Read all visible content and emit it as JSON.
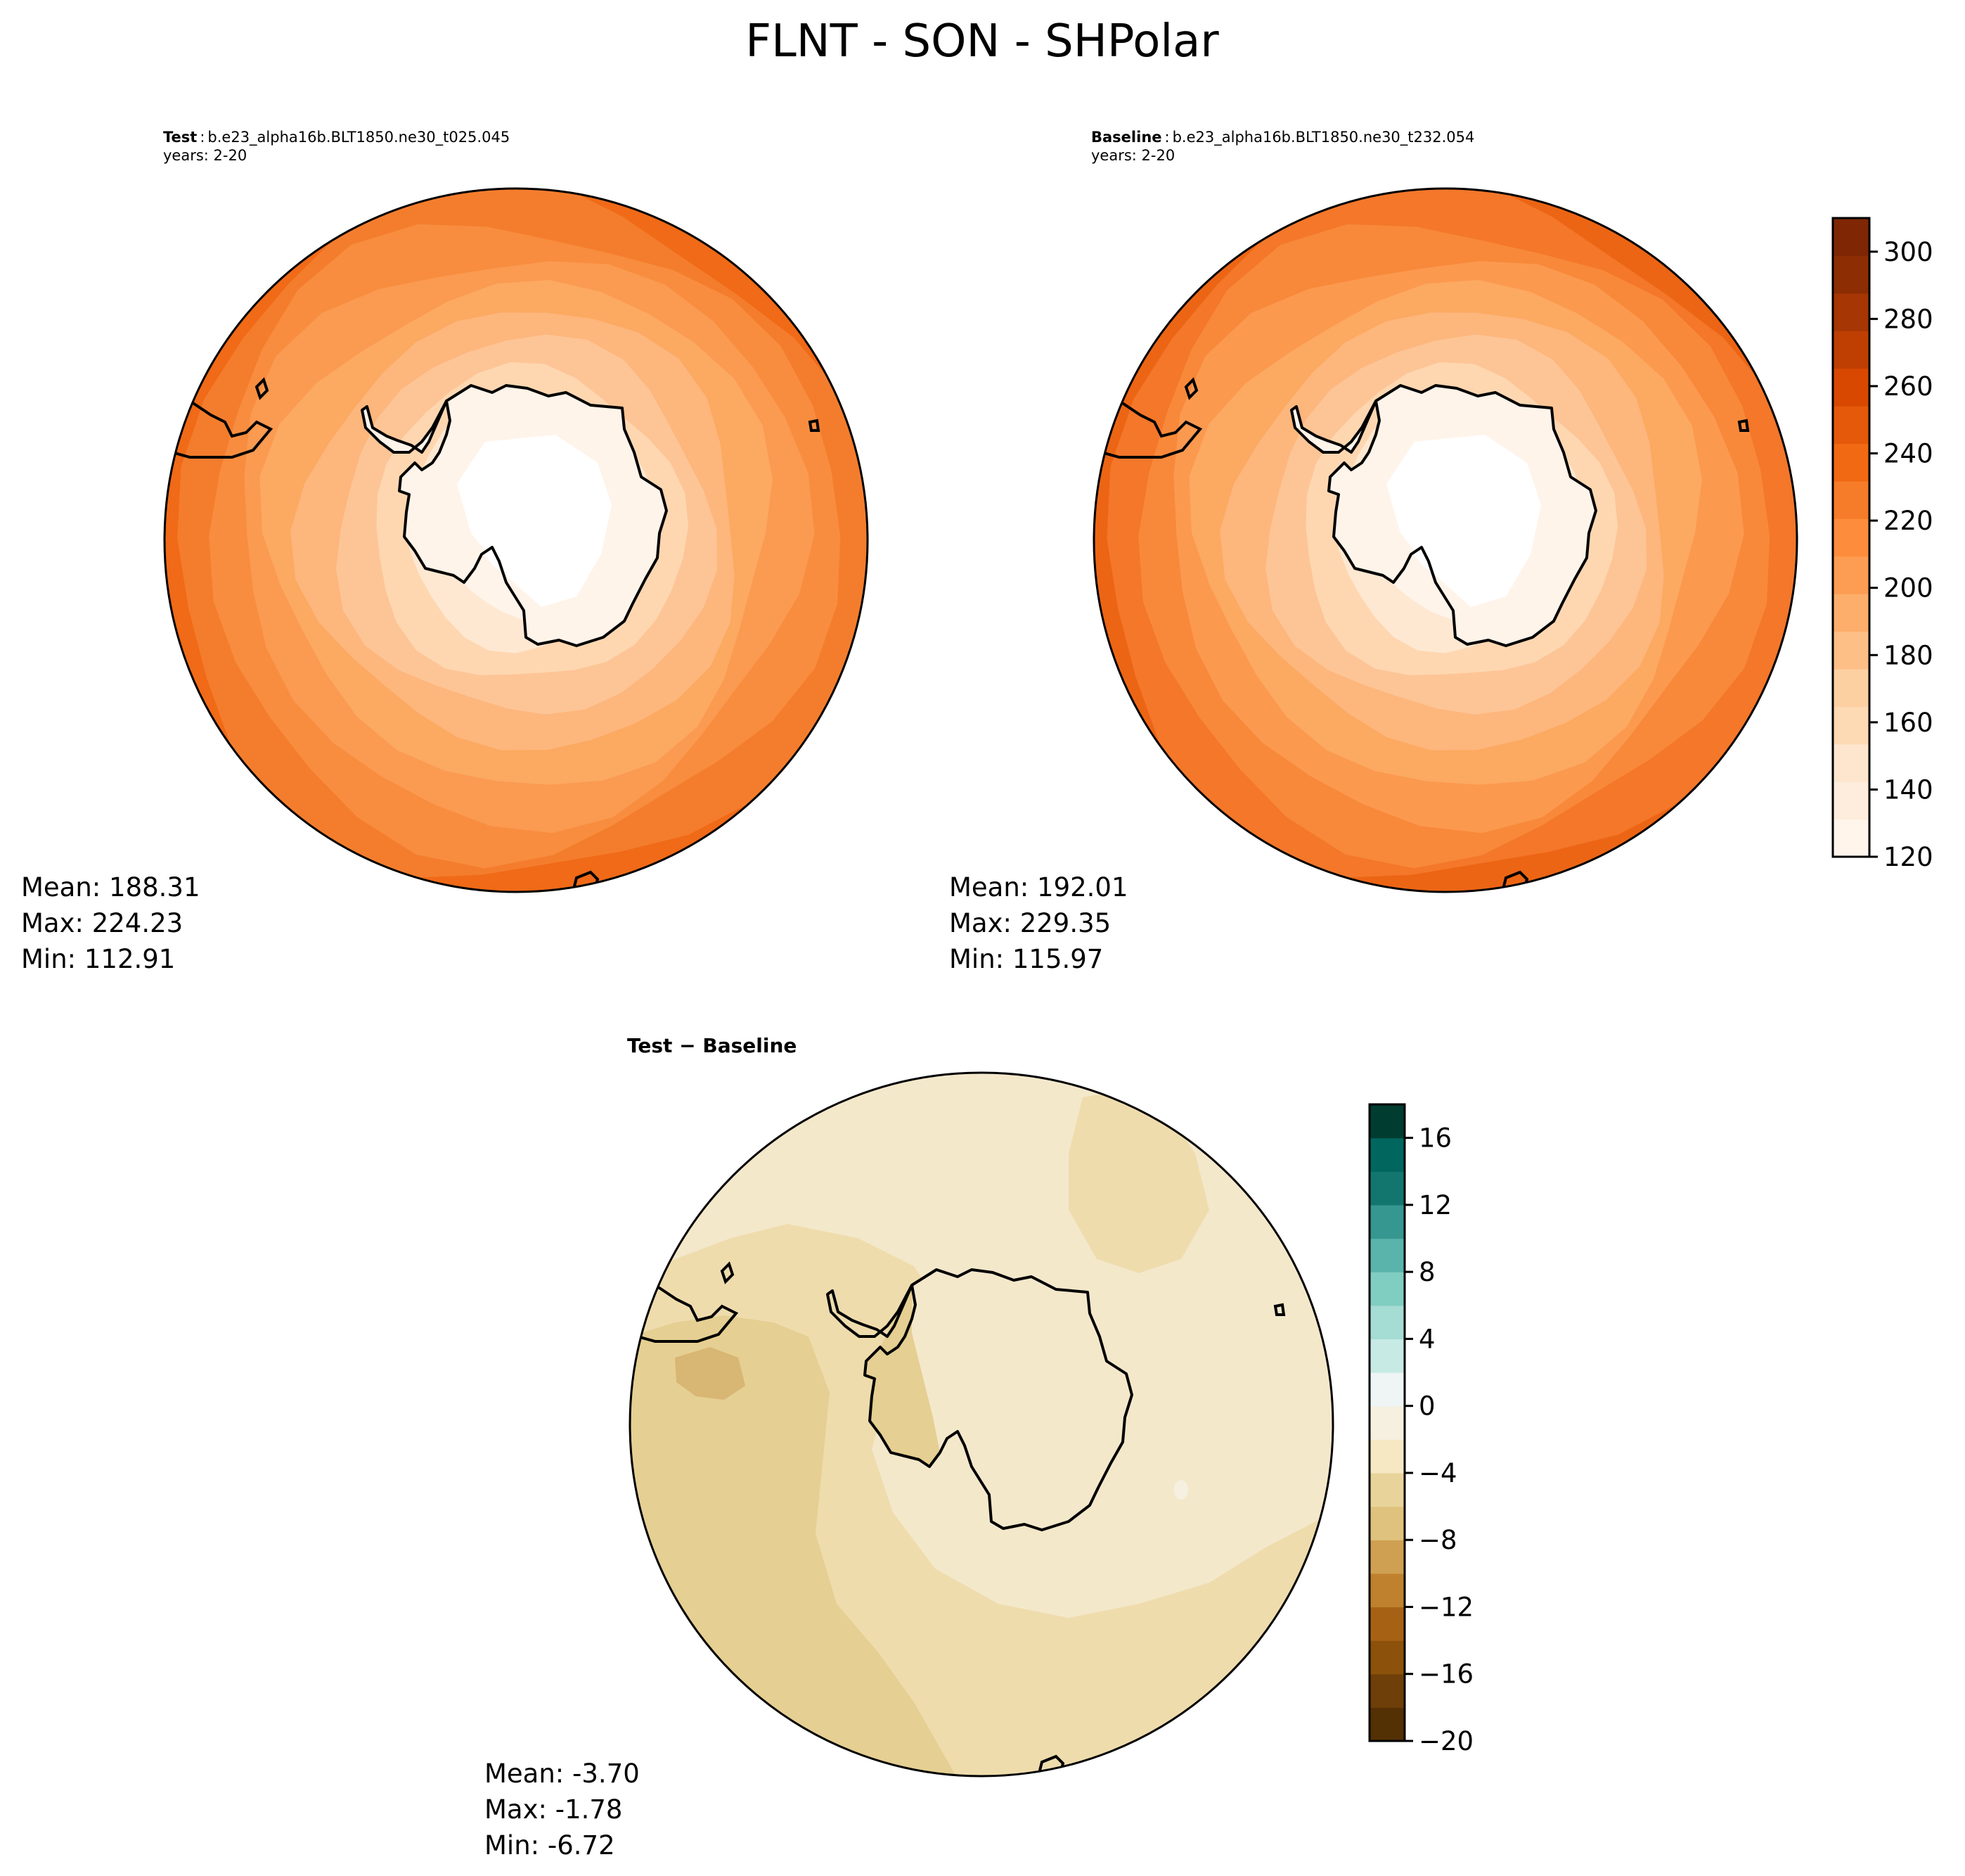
{
  "title": "FLNT - SON - SHPolar",
  "panels": {
    "test": {
      "label": "Test",
      "case": "b.e23_alpha16b.BLT1850.ne30_t025.045",
      "years": "years: 2-20",
      "mean": "Mean: 188.31",
      "max": "Max: 224.23",
      "min": "Min: 112.91"
    },
    "baseline": {
      "label": "Baseline",
      "case": "b.e23_alpha16b.BLT1850.ne30_t232.054",
      "years": "years: 2-20",
      "mean": "Mean: 192.01",
      "max": "Max: 229.35",
      "min": "Min: 115.97"
    },
    "diff": {
      "label": "Test − Baseline",
      "mean": "Mean: -3.70",
      "max": "Max: -1.78",
      "min": "Min: -6.72"
    }
  },
  "chart_data": [
    {
      "type": "heatmap",
      "projection": "south polar stereographic",
      "panel": "test",
      "mean": 188.31,
      "max": 224.23,
      "min": 112.91,
      "colormap": "Oranges",
      "color_range": [
        120,
        310
      ]
    },
    {
      "type": "heatmap",
      "projection": "south polar stereographic",
      "panel": "baseline",
      "mean": 192.01,
      "max": 229.35,
      "min": 115.97,
      "colormap": "Oranges",
      "color_range": [
        120,
        310
      ]
    },
    {
      "type": "heatmap",
      "projection": "south polar stereographic",
      "panel": "diff",
      "mean": -3.7,
      "max": -1.78,
      "min": -6.72,
      "colormap": "BrBG",
      "color_range": [
        -20,
        18
      ]
    }
  ],
  "colorbars": {
    "main": {
      "ticks": [
        "120",
        "140",
        "160",
        "180",
        "200",
        "220",
        "240",
        "260",
        "280",
        "300"
      ],
      "colors": [
        "#fff5eb",
        "#feeddc",
        "#fee6ce",
        "#fdd9b4",
        "#fdd0a2",
        "#fdbf86",
        "#fdae6b",
        "#fd9d53",
        "#fd8d3c",
        "#f67c29",
        "#f16913",
        "#e5590a",
        "#d94801",
        "#bf3f03",
        "#a63603",
        "#8c2d04",
        "#7f2704"
      ]
    },
    "diff": {
      "ticks": [
        "−20",
        "−16",
        "−12",
        "−8",
        "−4",
        "0",
        "4",
        "8",
        "12",
        "16"
      ],
      "colors": [
        "#543005",
        "#6e3f08",
        "#8c510a",
        "#a76115",
        "#bf812d",
        "#cfa052",
        "#dfc27d",
        "#e8d49a",
        "#f6e8c3",
        "#f5f0e0",
        "#eef5f4",
        "#c7eae5",
        "#a5dcd3",
        "#80cdc1",
        "#5ab4ac",
        "#35978f",
        "#13766e",
        "#01665e",
        "#003c30"
      ]
    }
  },
  "map_colors": {
    "test_rings": [
      "#f06a17",
      "#f47d2d",
      "#f88d3f",
      "#fb9a51",
      "#fca961",
      "#fdb67c",
      "#fdc596",
      "#fed7b1",
      "#fee8d2",
      "#fff4ea",
      "#ffffff"
    ],
    "base_rings": [
      "#ec6514",
      "#f4772a",
      "#f8893a",
      "#fb994f",
      "#fca961",
      "#fdb67c",
      "#fdc596",
      "#fed7b1",
      "#fee8d2",
      "#fff4ea",
      "#ffffff"
    ],
    "diff_fill": "#f4e8cb",
    "diff_dark": "#e5cf92",
    "diff_darker": "#d8b673",
    "diff_mid": "#efdcad"
  }
}
